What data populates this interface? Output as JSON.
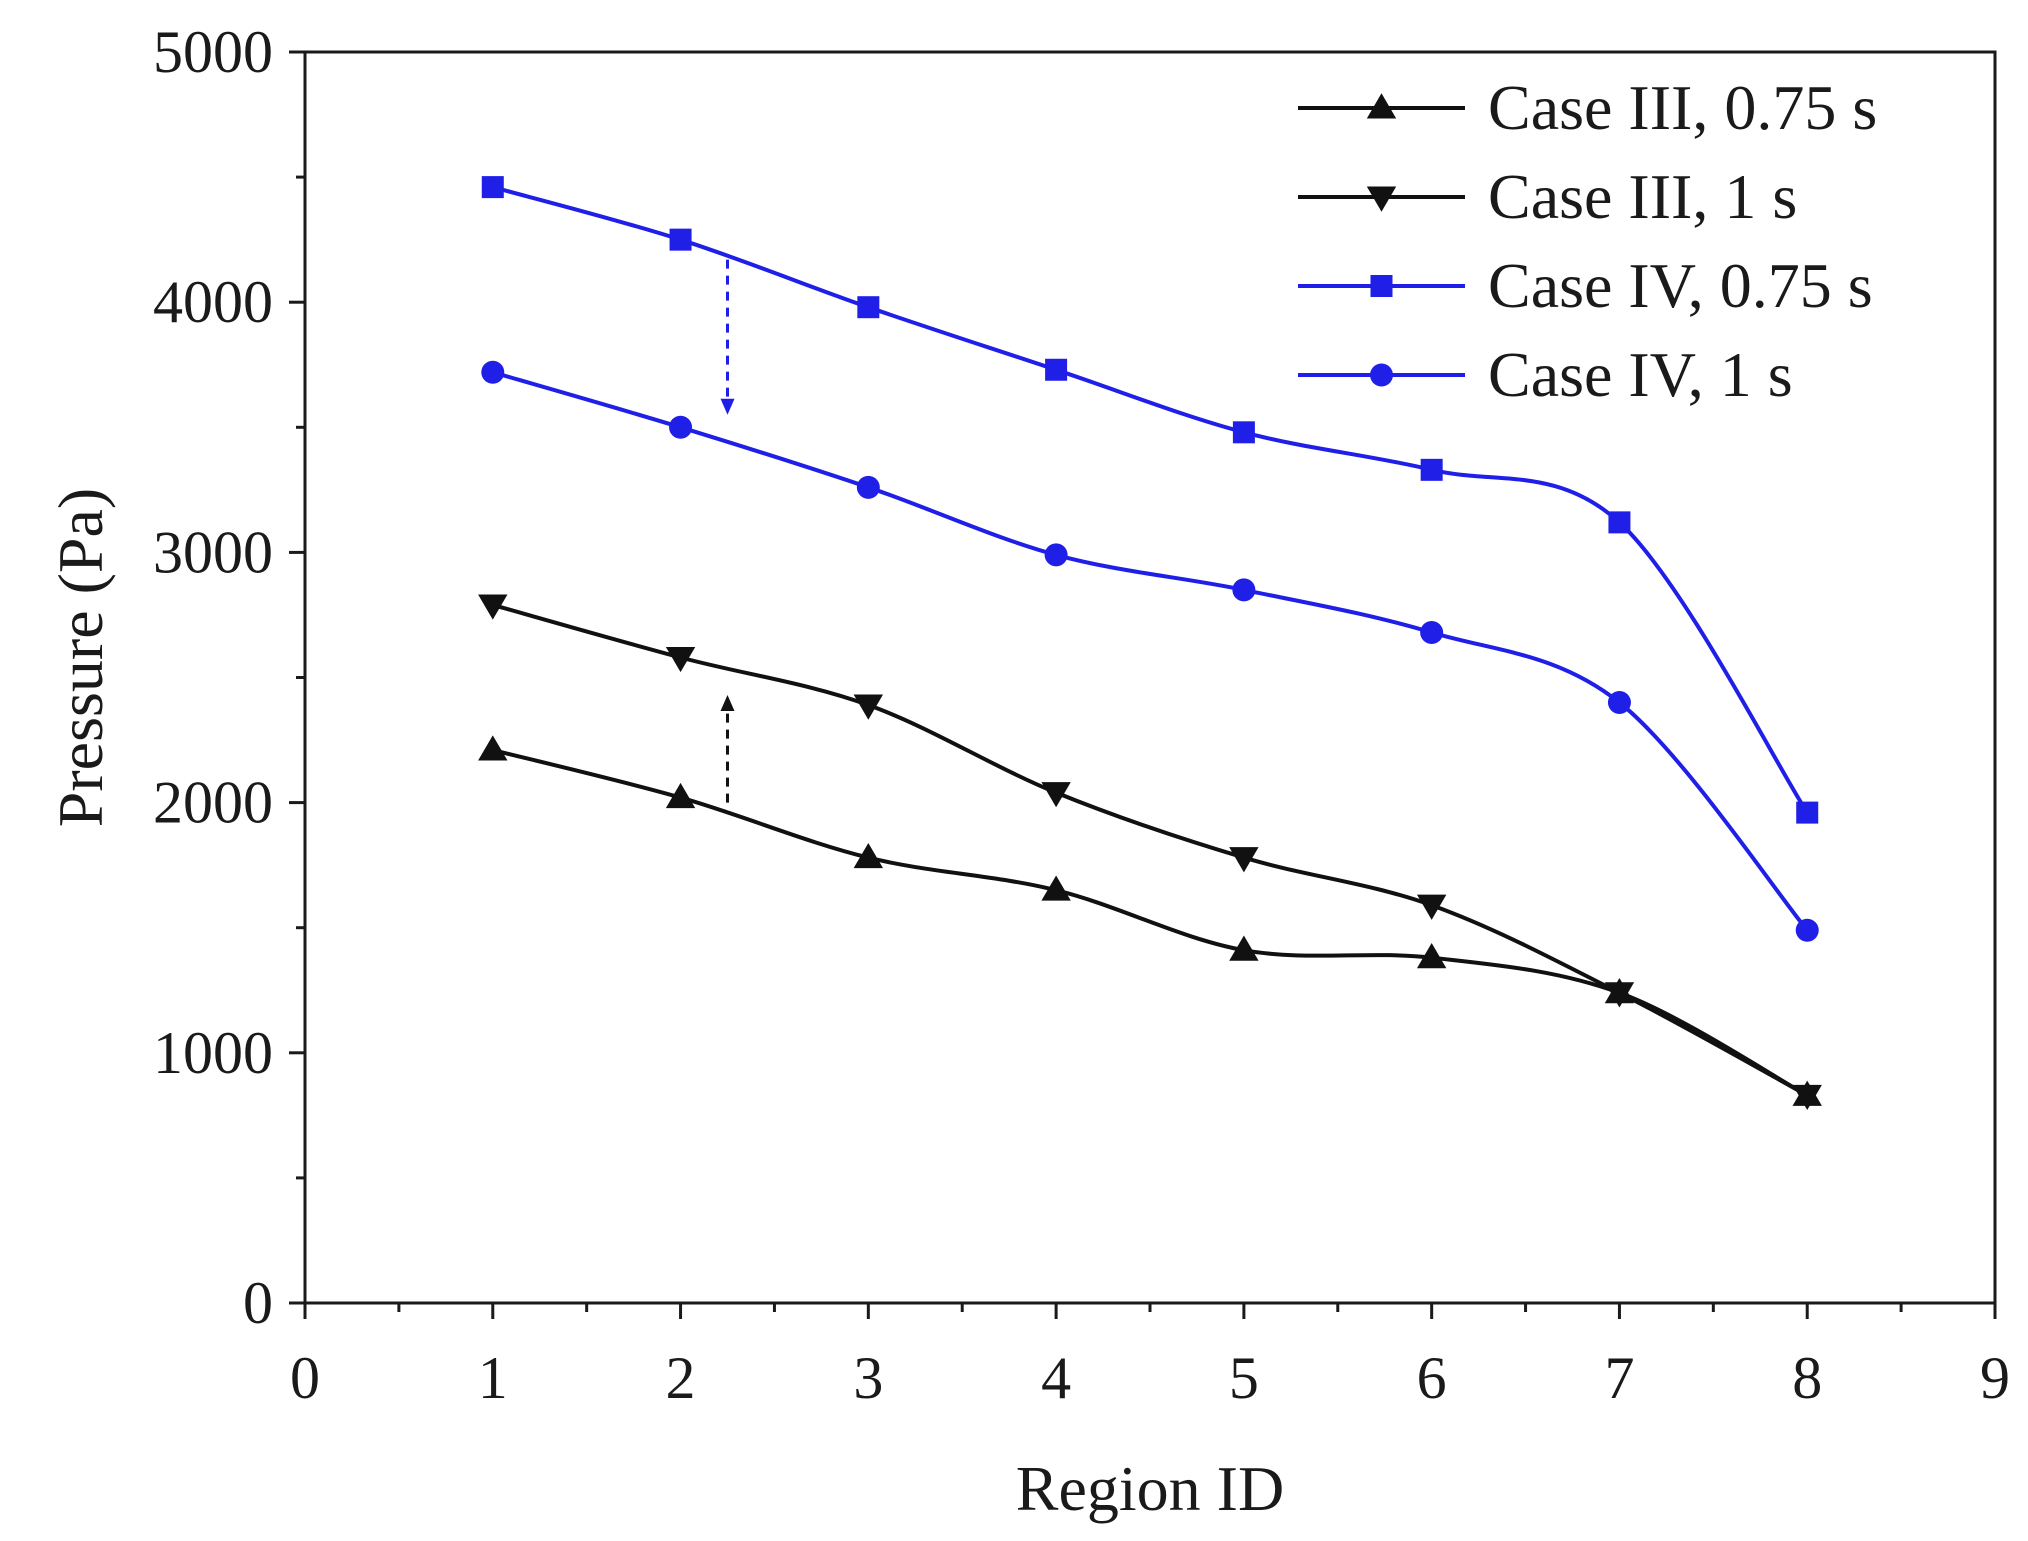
{
  "chart_data": {
    "type": "line",
    "title": "",
    "xlabel": "Region ID",
    "ylabel": "Pressure (Pa)",
    "xlim": [
      0,
      9
    ],
    "ylim": [
      0,
      5000
    ],
    "x_ticks": [
      0,
      1,
      2,
      3,
      4,
      5,
      6,
      7,
      8,
      9
    ],
    "y_ticks": [
      0,
      1000,
      2000,
      3000,
      4000,
      5000
    ],
    "x_tick_labels": [
      "0",
      "1",
      "2",
      "3",
      "4",
      "5",
      "6",
      "7",
      "8",
      "9"
    ],
    "y_tick_labels": [
      "0",
      "1000",
      "2000",
      "3000",
      "4000",
      "5000"
    ],
    "grid": false,
    "legend_position": "top-right",
    "x": [
      1,
      2,
      3,
      4,
      5,
      6,
      7,
      8
    ],
    "series": [
      {
        "name": "Case III, 0.75 s",
        "marker": "triangle-up",
        "color": "#111111",
        "values": [
          2210,
          2020,
          1780,
          1650,
          1410,
          1380,
          1240,
          830
        ]
      },
      {
        "name": "Case III, 1 s",
        "marker": "triangle-down",
        "color": "#111111",
        "values": [
          2790,
          2580,
          2390,
          2040,
          1780,
          1590,
          1240,
          830
        ]
      },
      {
        "name": "Case IV, 0.75 s",
        "marker": "square",
        "color": "#1f1fe8",
        "values": [
          4460,
          4250,
          3980,
          3730,
          3480,
          3330,
          3120,
          1960
        ]
      },
      {
        "name": "Case IV, 1 s",
        "marker": "circle",
        "color": "#1f1fe8",
        "values": [
          3720,
          3500,
          3260,
          2990,
          2850,
          2680,
          2400,
          1490
        ]
      }
    ],
    "annotations": [
      {
        "type": "dashed-arrow",
        "direction": "down",
        "color": "#1f1fe8",
        "x": 2.25,
        "from": 4170,
        "to": 3550
      },
      {
        "type": "dashed-arrow",
        "direction": "up",
        "color": "#111111",
        "x": 2.25,
        "from": 2000,
        "to": 2430
      }
    ]
  }
}
